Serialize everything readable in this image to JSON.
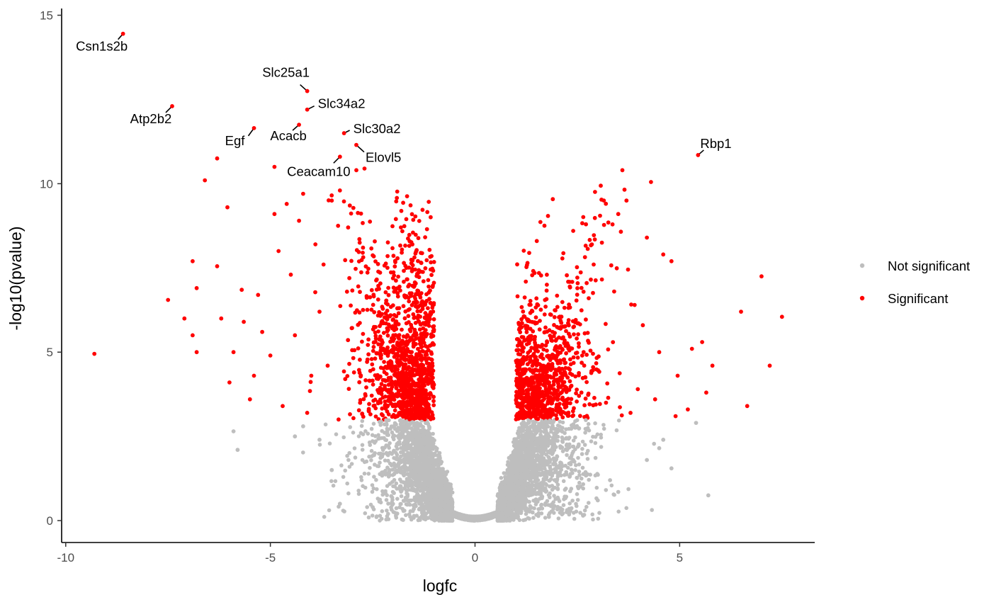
{
  "chart_data": {
    "type": "scatter",
    "title": "",
    "xlabel": "logfc",
    "ylabel": "-log10(pvalue)",
    "xlim": [
      -10.1,
      8.3
    ],
    "ylim": [
      -0.65,
      15.2
    ],
    "x_ticks": [
      -10,
      -5,
      0,
      5
    ],
    "x_tick_labels": [
      "-10",
      "-5",
      "0",
      "5"
    ],
    "y_ticks": [
      0,
      5,
      10,
      15
    ],
    "y_tick_labels": [
      "0",
      "5",
      "10",
      "15"
    ],
    "grid": false,
    "legend_position": "right",
    "significance_threshold": {
      "abs_logfc": 1,
      "neg_log10_p": 3
    },
    "series": [
      {
        "name": "Not significant",
        "color": "#bebebe"
      },
      {
        "name": "Significant",
        "color": "#ff0000"
      }
    ],
    "labeled_points": [
      {
        "gene": "Csn1s2b",
        "x": -8.6,
        "y": 14.45
      },
      {
        "gene": "Slc25a1",
        "x": -4.1,
        "y": 12.75
      },
      {
        "gene": "Atp2b2",
        "x": -7.4,
        "y": 12.3
      },
      {
        "gene": "Slc34a2",
        "x": -4.1,
        "y": 12.2
      },
      {
        "gene": "Egf",
        "x": -5.4,
        "y": 11.65
      },
      {
        "gene": "Acacb",
        "x": -4.3,
        "y": 11.75
      },
      {
        "gene": "Slc30a2",
        "x": -3.2,
        "y": 11.5
      },
      {
        "gene": "Elovl5",
        "x": -2.9,
        "y": 11.15
      },
      {
        "gene": "Ceacam10",
        "x": -3.3,
        "y": 10.8
      },
      {
        "gene": "Rbp1",
        "x": 5.45,
        "y": 10.85
      }
    ],
    "outlier_points_significant": [
      [
        -9.3,
        4.95
      ],
      [
        -7.5,
        6.55
      ],
      [
        -6.8,
        6.9
      ],
      [
        -6.9,
        7.7
      ],
      [
        -6.3,
        7.55
      ],
      [
        -6.2,
        6.0
      ],
      [
        -6.6,
        10.1
      ],
      [
        -6.3,
        10.75
      ],
      [
        -6.05,
        9.3
      ],
      [
        -6.0,
        4.1
      ],
      [
        -5.7,
        6.85
      ],
      [
        -5.65,
        5.9
      ],
      [
        -5.4,
        4.3
      ],
      [
        -5.5,
        3.6
      ],
      [
        -5.2,
        5.6
      ],
      [
        -4.9,
        10.5
      ],
      [
        -4.9,
        9.1
      ],
      [
        -4.8,
        8.0
      ],
      [
        -4.6,
        9.4
      ],
      [
        -4.3,
        8.9
      ],
      [
        -4.5,
        7.3
      ],
      [
        -4.2,
        9.7
      ],
      [
        -3.9,
        8.2
      ],
      [
        -3.5,
        9.5
      ],
      [
        -3.7,
        7.6
      ],
      [
        -3.3,
        9.8
      ],
      [
        -2.9,
        10.4
      ],
      [
        -2.7,
        10.45
      ],
      [
        -3.1,
        8.7
      ],
      [
        -3.8,
        6.2
      ],
      [
        -4.0,
        4.3
      ],
      [
        -4.7,
        3.4
      ],
      [
        -5.0,
        4.9
      ],
      [
        -5.3,
        6.7
      ],
      [
        -6.9,
        5.5
      ],
      [
        -7.1,
        6.0
      ],
      [
        -6.8,
        5.0
      ],
      [
        -5.9,
        5.0
      ],
      [
        -4.4,
        5.5
      ],
      [
        -3.6,
        4.6
      ],
      [
        -4.1,
        3.2
      ],
      [
        3.6,
        10.4
      ],
      [
        4.3,
        10.05
      ],
      [
        3.7,
        9.5
      ],
      [
        3.5,
        9.1
      ],
      [
        4.2,
        8.4
      ],
      [
        4.6,
        7.9
      ],
      [
        4.8,
        7.7
      ],
      [
        3.1,
        8.25
      ],
      [
        2.9,
        7.6
      ],
      [
        3.4,
        6.8
      ],
      [
        3.9,
        6.4
      ],
      [
        4.1,
        5.8
      ],
      [
        4.5,
        5.0
      ],
      [
        4.95,
        4.3
      ],
      [
        5.3,
        5.1
      ],
      [
        5.55,
        5.3
      ],
      [
        5.8,
        4.6
      ],
      [
        5.65,
        3.8
      ],
      [
        6.5,
        6.2
      ],
      [
        7.0,
        7.25
      ],
      [
        7.5,
        6.05
      ],
      [
        7.2,
        4.6
      ],
      [
        6.65,
        3.4
      ],
      [
        5.2,
        3.3
      ],
      [
        4.9,
        3.1
      ],
      [
        4.4,
        3.6
      ],
      [
        3.8,
        3.2
      ],
      [
        3.2,
        3.5
      ],
      [
        2.6,
        3.8
      ],
      [
        2.4,
        8.6
      ]
    ],
    "outlier_points_not_significant": [
      [
        -5.9,
        2.65
      ],
      [
        -5.8,
        2.1
      ],
      [
        -3.3,
        0.5
      ],
      [
        5.7,
        0.75
      ],
      [
        4.6,
        2.4
      ],
      [
        4.5,
        2.15
      ],
      [
        4.8,
        1.55
      ],
      [
        5.4,
        2.9
      ],
      [
        3.3,
        1.2
      ],
      [
        3.5,
        0.85
      ],
      [
        3.0,
        0.6
      ],
      [
        -4.4,
        2.5
      ],
      [
        -3.8,
        2.4
      ],
      [
        -3.5,
        1.5
      ],
      [
        -2.5,
        0.4
      ],
      [
        2.3,
        0.35
      ],
      [
        4.2,
        1.8
      ],
      [
        -4.2,
        2.8
      ]
    ]
  }
}
